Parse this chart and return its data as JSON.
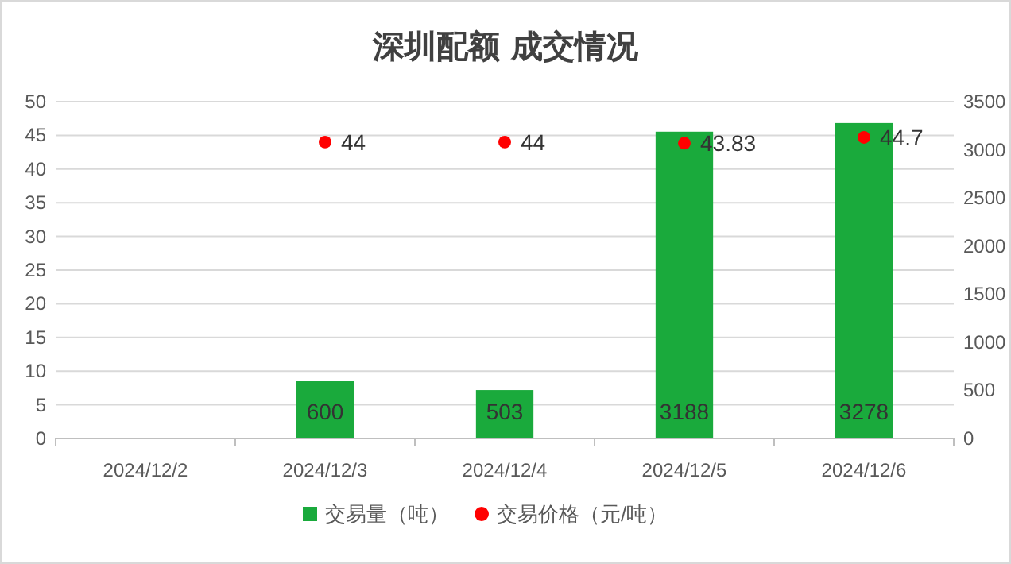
{
  "chart_data": {
    "type": "bar",
    "title": "深圳配额 成交情况",
    "categories": [
      "2024/12/2",
      "2024/12/3",
      "2024/12/4",
      "2024/12/5",
      "2024/12/6"
    ],
    "series": [
      {
        "name": "交易量（吨）",
        "axis": "y2",
        "color": "#1aaa3c",
        "values": [
          null,
          600,
          503,
          3188,
          3278
        ]
      },
      {
        "name": "交易价格（元/吨）",
        "type": "scatter",
        "axis": "y",
        "color": "#ff0000",
        "values": [
          null,
          44,
          44,
          43.83,
          44.7
        ]
      }
    ],
    "ylim": [
      0,
      50
    ],
    "yticks": [
      0,
      5,
      10,
      15,
      20,
      25,
      30,
      35,
      40,
      45,
      50
    ],
    "y2lim": [
      0,
      3500
    ],
    "y2ticks": [
      0,
      500,
      1000,
      1500,
      2000,
      2500,
      3000,
      3500
    ],
    "grid": "y",
    "legend": "bottom",
    "data_labels": true,
    "marker": "circle"
  }
}
